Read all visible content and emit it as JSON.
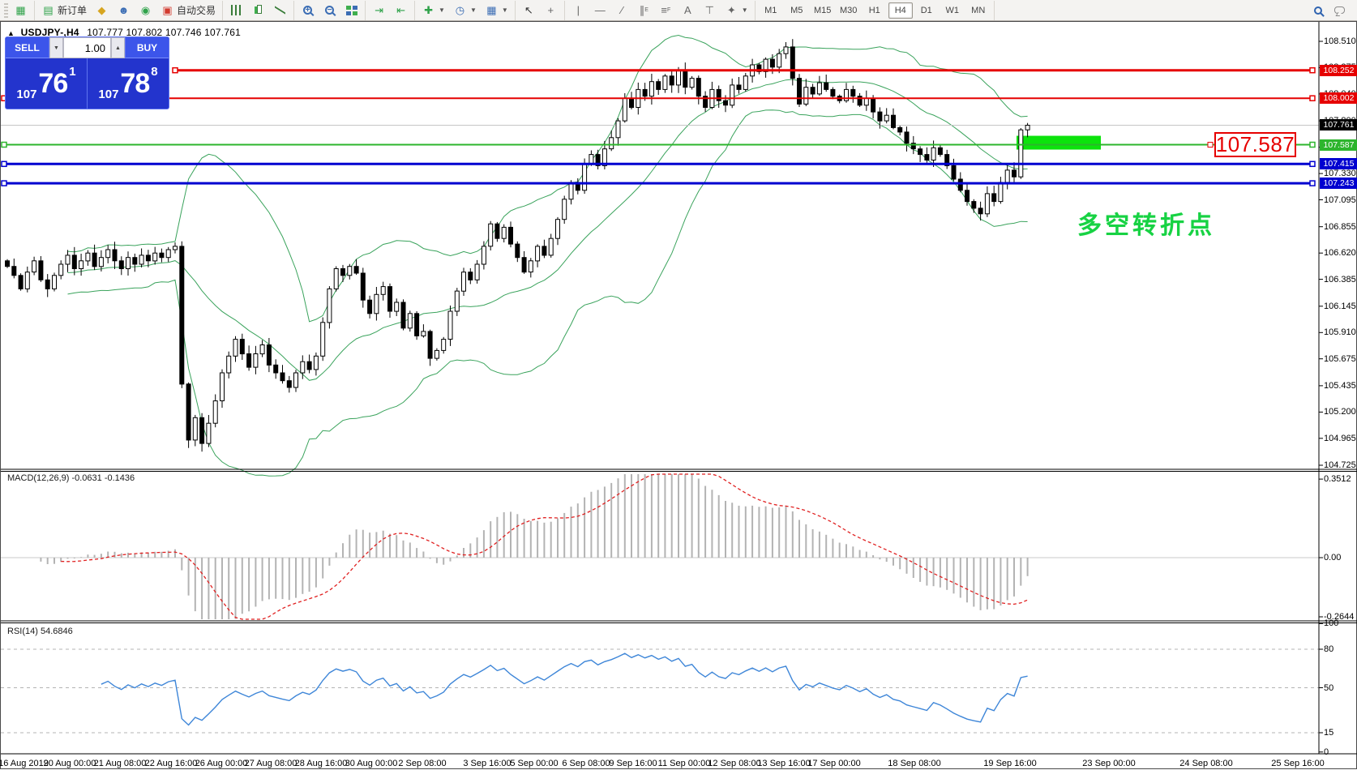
{
  "toolbar": {
    "new_order_label": "新订单",
    "autotrade_label": "自动交易",
    "timeframes": [
      "M1",
      "M5",
      "M15",
      "M30",
      "H1",
      "H4",
      "D1",
      "W1",
      "MN"
    ],
    "active_timeframe": "H4"
  },
  "chart": {
    "title_symbol": "USDJPY-,H4",
    "title_ohlc": "107.777 107.802 107.746 107.761",
    "one_click": {
      "sell_label": "SELL",
      "buy_label": "BUY",
      "volume": "1.00",
      "sell_prefix": "107",
      "sell_big": "76",
      "sell_sup": "1",
      "buy_prefix": "107",
      "buy_big": "78",
      "buy_sup": "8"
    },
    "annotation_text": "多空转折点",
    "annotation_color": "#17d243",
    "price_box_text": "107.587"
  },
  "macd": {
    "label": "MACD(12,26,9) -0.0631 -0.1436",
    "axis_ticks": [
      "0.3512",
      "0.00",
      "-0.2644"
    ],
    "histogram_color": "#b3b3b3",
    "signal_color": "#e02020"
  },
  "rsi": {
    "label": "RSI(14) 54.6846",
    "value": 54.6846,
    "axis_ticks": [
      "100",
      "80",
      "50",
      "15",
      "0"
    ],
    "level_lines": [
      80,
      50,
      15
    ],
    "line_color": "#3e86d8"
  },
  "chart_data": {
    "type": "candlestick",
    "symbol": "USDJPY-",
    "timeframe": "H4",
    "ohlc_display": {
      "open": "107.777",
      "high": "107.802",
      "low": "107.746",
      "close": "107.761"
    },
    "current_price": 107.761,
    "current_price_label": "107.761",
    "ylim": [
      104.725,
      108.51
    ],
    "price_axis_ticks": [
      "108.510",
      "108.275",
      "108.040",
      "107.800",
      "107.565",
      "107.330",
      "107.095",
      "106.855",
      "106.620",
      "106.385",
      "106.145",
      "105.910",
      "105.675",
      "105.435",
      "105.200",
      "104.965",
      "104.725"
    ],
    "time_axis_labels": [
      "16 Aug 2019",
      "20 Aug 00:00",
      "21 Aug 08:00",
      "22 Aug 16:00",
      "26 Aug 00:00",
      "27 Aug 08:00",
      "28 Aug 16:00",
      "30 Aug 00:00",
      "2 Sep 08:00",
      "3 Sep 16:00",
      "5 Sep 00:00",
      "6 Sep 08:00",
      "9 Sep 16:00",
      "11 Sep 00:00",
      "12 Sep 08:00",
      "13 Sep 16:00",
      "17 Sep 00:00",
      "18 Sep 08:00",
      "19 Sep 16:00",
      "23 Sep 00:00",
      "24 Sep 08:00",
      "25 Sep 16:00"
    ],
    "horizontal_levels": [
      {
        "price": 108.252,
        "label": "108.252",
        "color": "#e60000",
        "width": 3,
        "starts_at_left": false
      },
      {
        "price": 108.002,
        "label": "108.002",
        "color": "#e60000",
        "width": 2,
        "starts_at_left": true
      },
      {
        "price": 107.587,
        "label": "107.587",
        "color": "#2db52d",
        "width": 2,
        "starts_at_left": true
      },
      {
        "price": 107.415,
        "label": "107.415",
        "color": "#0000d0",
        "width": 3,
        "starts_at_left": true
      },
      {
        "price": 107.243,
        "label": "107.243",
        "color": "#0000d0",
        "width": 3,
        "starts_at_left": true
      }
    ],
    "highlight_zone": {
      "price": 107.587,
      "color": "#0ce30c"
    },
    "closes": [
      106.5,
      106.42,
      106.3,
      106.45,
      106.55,
      106.38,
      106.3,
      106.42,
      106.52,
      106.6,
      106.48,
      106.55,
      106.62,
      106.5,
      106.58,
      106.65,
      106.55,
      106.48,
      106.58,
      106.52,
      106.6,
      106.55,
      106.62,
      106.58,
      106.65,
      106.68,
      105.45,
      104.95,
      105.15,
      104.92,
      105.1,
      105.3,
      105.55,
      105.7,
      105.85,
      105.72,
      105.6,
      105.72,
      105.8,
      105.62,
      105.55,
      105.48,
      105.42,
      105.55,
      105.65,
      105.58,
      105.7,
      106.0,
      106.3,
      106.48,
      106.42,
      106.5,
      106.44,
      106.2,
      106.08,
      106.25,
      106.32,
      106.1,
      106.18,
      105.95,
      106.08,
      105.88,
      105.92,
      105.68,
      105.75,
      105.85,
      106.1,
      106.28,
      106.45,
      106.38,
      106.52,
      106.68,
      106.88,
      106.75,
      106.85,
      106.7,
      106.58,
      106.45,
      106.55,
      106.68,
      106.6,
      106.75,
      106.92,
      107.1,
      107.25,
      107.18,
      107.42,
      107.5,
      107.4,
      107.55,
      107.65,
      107.8,
      108.0,
      107.92,
      108.08,
      108.02,
      108.15,
      108.08,
      108.2,
      108.12,
      108.25,
      108.1,
      108.18,
      108.02,
      107.92,
      108.08,
      107.98,
      107.94,
      108.12,
      108.08,
      108.2,
      108.3,
      108.24,
      108.35,
      108.28,
      108.4,
      108.46,
      108.18,
      107.95,
      108.1,
      108.04,
      108.14,
      108.08,
      108.02,
      107.98,
      108.08,
      108.02,
      107.94,
      108.0,
      107.88,
      107.8,
      107.85,
      107.74,
      107.7,
      107.6,
      107.55,
      107.5,
      107.45,
      107.56,
      107.5,
      107.4,
      107.28,
      107.18,
      107.08,
      107.02,
      106.97,
      107.15,
      107.08,
      107.25,
      107.36,
      107.3,
      107.72,
      107.761
    ],
    "indicators": [
      {
        "name": "Bollinger Bands",
        "period": 20,
        "deviation": 2,
        "color": "#3aa35c"
      },
      {
        "name": "MACD",
        "params": "12,26,9",
        "main_value": -0.0631,
        "signal_value": -0.1436
      },
      {
        "name": "RSI",
        "period": 14,
        "value": 54.6846
      }
    ]
  }
}
